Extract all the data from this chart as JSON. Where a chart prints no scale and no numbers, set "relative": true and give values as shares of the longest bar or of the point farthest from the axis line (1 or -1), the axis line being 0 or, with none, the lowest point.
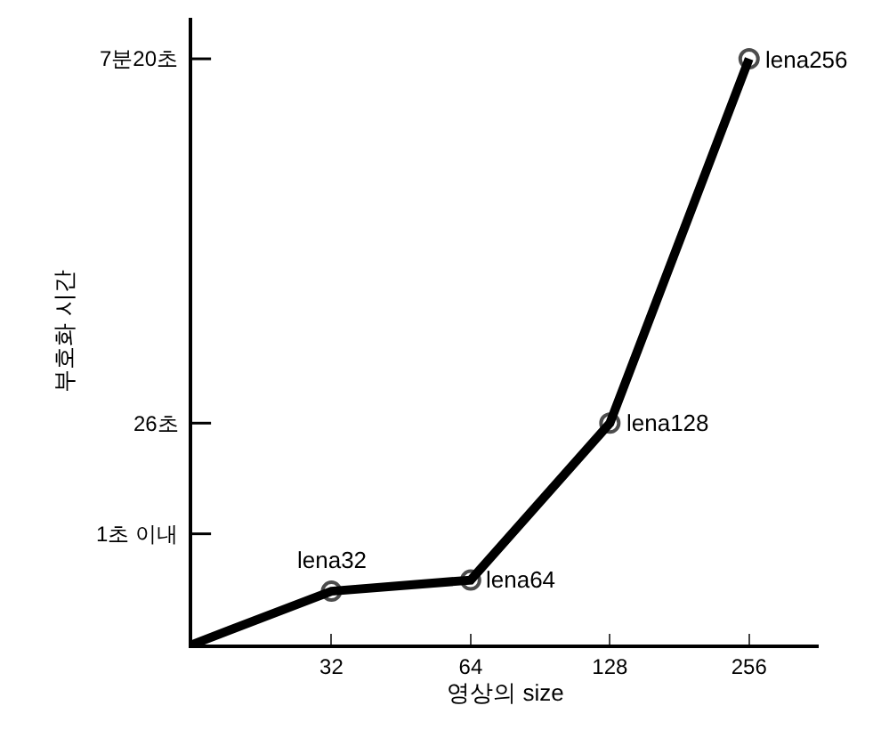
{
  "chart_data": {
    "type": "line",
    "xlabel": "영상의 size",
    "ylabel": "부호화 시간",
    "categories": [
      null,
      "32",
      "64",
      "128",
      "256"
    ],
    "series": [
      {
        "color": "#000000",
        "values": [
          0,
          0.091,
          0.11,
          0.378,
          1
        ]
      }
    ],
    "relative": true,
    "ref_lines": [
      {
        "axis": "y",
        "value": 0.189,
        "label": "1초 이내"
      },
      {
        "axis": "y",
        "value": 0.378,
        "label": "26초"
      },
      {
        "axis": "y",
        "value": 1,
        "label": "7분20초"
      }
    ],
    "annotations": [
      {
        "text": "lena32",
        "x": "32",
        "y": 0.091
      },
      {
        "text": "lena64",
        "x": "64",
        "y": 0.11
      },
      {
        "text": "lena128",
        "x": "128",
        "y": 0.378
      },
      {
        "text": "lena256",
        "x": "256",
        "y": 1
      }
    ],
    "marker": "circle",
    "line_style": "solid"
  }
}
